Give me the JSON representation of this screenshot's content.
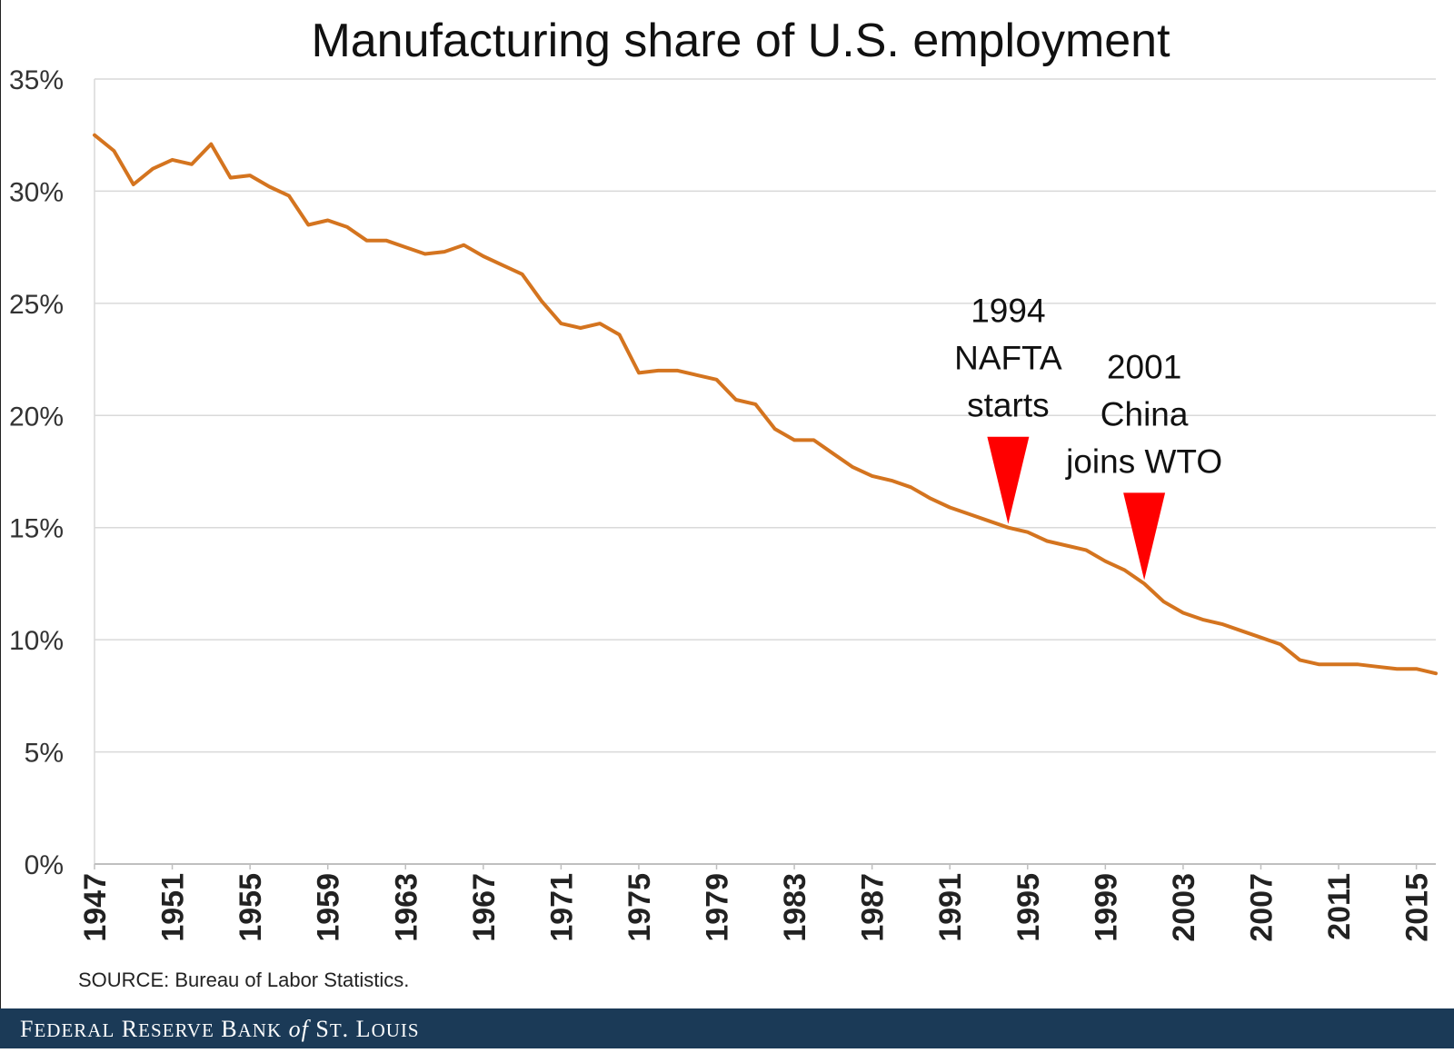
{
  "chart_data": {
    "type": "line",
    "title": "Manufacturing share of U.S. employment",
    "xlabel": "",
    "ylabel": "",
    "xlim": [
      1947,
      2016
    ],
    "ylim": [
      0,
      35
    ],
    "y_ticks": [
      "0%",
      "5%",
      "10%",
      "15%",
      "20%",
      "25%",
      "30%",
      "35%"
    ],
    "x_ticks": [
      "1947",
      "1951",
      "1955",
      "1959",
      "1963",
      "1967",
      "1971",
      "1975",
      "1979",
      "1983",
      "1987",
      "1991",
      "1995",
      "1999",
      "2003",
      "2007",
      "2011",
      "2015"
    ],
    "grid": true,
    "legend": "none",
    "line_color": "#d4741f",
    "x": [
      1947,
      1948,
      1949,
      1950,
      1951,
      1952,
      1953,
      1954,
      1955,
      1956,
      1957,
      1958,
      1959,
      1960,
      1961,
      1962,
      1963,
      1964,
      1965,
      1966,
      1967,
      1968,
      1969,
      1970,
      1971,
      1972,
      1973,
      1974,
      1975,
      1976,
      1977,
      1978,
      1979,
      1980,
      1981,
      1982,
      1983,
      1984,
      1985,
      1986,
      1987,
      1988,
      1989,
      1990,
      1991,
      1992,
      1993,
      1994,
      1995,
      1996,
      1997,
      1998,
      1999,
      2000,
      2001,
      2002,
      2003,
      2004,
      2005,
      2006,
      2007,
      2008,
      2009,
      2010,
      2011,
      2012,
      2013,
      2014,
      2015,
      2016
    ],
    "y": [
      32.5,
      31.8,
      30.3,
      31.0,
      31.4,
      31.2,
      32.1,
      30.6,
      30.7,
      30.2,
      29.8,
      28.5,
      28.7,
      28.4,
      27.8,
      27.8,
      27.5,
      27.2,
      27.3,
      27.6,
      27.1,
      26.7,
      26.3,
      25.1,
      24.1,
      23.9,
      24.1,
      23.6,
      21.9,
      22.0,
      22.0,
      21.8,
      21.6,
      20.7,
      20.5,
      19.4,
      18.9,
      18.9,
      18.3,
      17.7,
      17.3,
      17.1,
      16.8,
      16.3,
      15.9,
      15.6,
      15.3,
      15.0,
      14.8,
      14.4,
      14.2,
      14.0,
      13.5,
      13.1,
      12.5,
      11.7,
      11.2,
      10.9,
      10.7,
      10.4,
      10.1,
      9.8,
      9.1,
      8.9,
      8.9,
      8.9,
      8.8,
      8.7,
      8.7,
      8.5
    ],
    "annotations": [
      {
        "lines": [
          "1994",
          "NAFTA",
          "starts"
        ],
        "x": 1994,
        "y": 15.0,
        "marker_color": "#ff0000"
      },
      {
        "lines": [
          "2001",
          "China",
          "joins WTO"
        ],
        "x": 2001,
        "y": 12.5,
        "marker_color": "#ff0000"
      }
    ]
  },
  "source": "SOURCE: Bureau of Labor Statistics.",
  "footer": {
    "text": "Federal Reserve Bank of St. Louis",
    "background": "#1b3a57"
  }
}
